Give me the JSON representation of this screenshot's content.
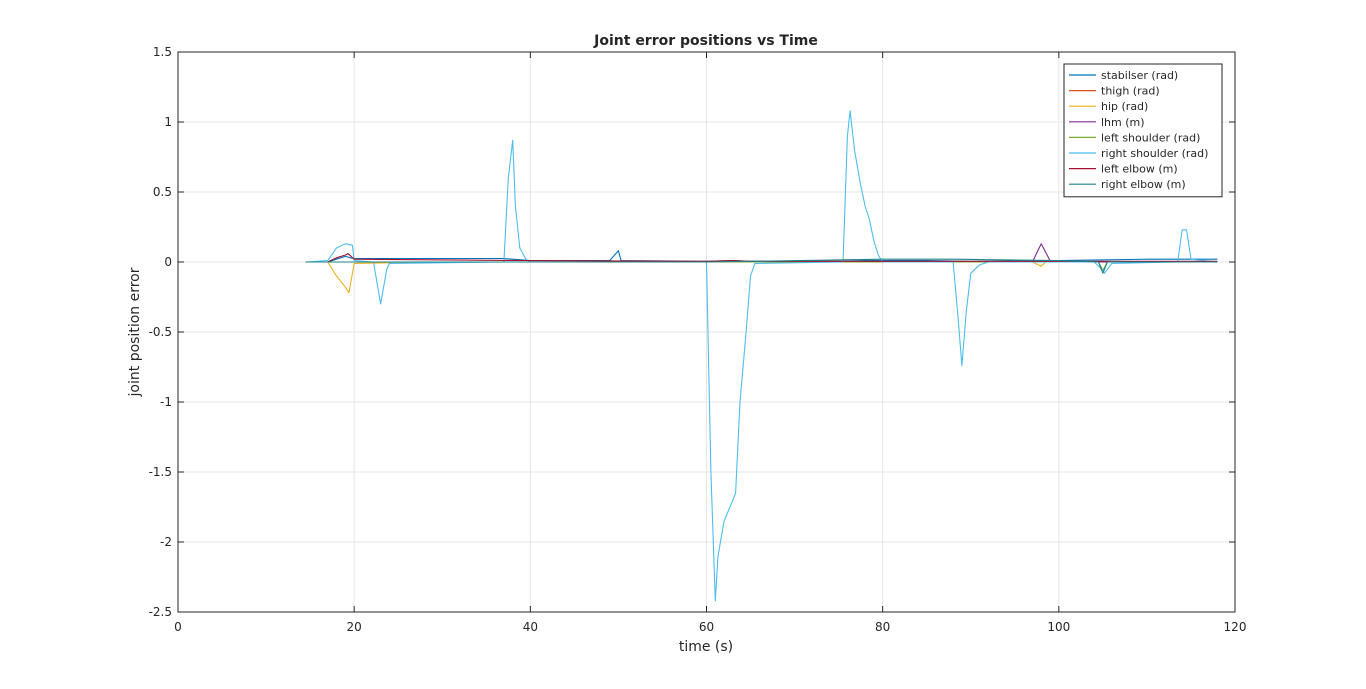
{
  "chart_data": {
    "type": "line",
    "title": "Joint error positions vs Time",
    "xlabel": "time (s)",
    "ylabel": "joint position error",
    "xlim": [
      0,
      120
    ],
    "ylim": [
      -2.5,
      1.5
    ],
    "xticks": [
      0,
      20,
      40,
      60,
      80,
      100,
      120
    ],
    "xtick_labels": [
      "0",
      "20",
      "40",
      "60",
      "80",
      "100",
      "120"
    ],
    "yticks": [
      -2.5,
      -2,
      -1.5,
      -1,
      -0.5,
      0,
      0.5,
      1,
      1.5
    ],
    "ytick_labels": [
      "-2.5",
      "-2",
      "-1.5",
      "-1",
      "-0.5",
      "0",
      "0.5",
      "1",
      "1.5"
    ],
    "grid": true,
    "legend_position": "top-right",
    "series": [
      {
        "name": "stabilser (rad)",
        "color": "#0072bd",
        "x": [
          14.5,
          17,
          18,
          19,
          19.6,
          20,
          37,
          38,
          40,
          49,
          50,
          50.3,
          60,
          63,
          65,
          75,
          78,
          85,
          90,
          100,
          110,
          115,
          118
        ],
        "y": [
          0,
          0,
          0.02,
          0.04,
          0.03,
          0.025,
          0.025,
          0.02,
          0.01,
          0.01,
          0.08,
          0.01,
          0.005,
          0.01,
          0.005,
          0.005,
          0.01,
          0.01,
          0.005,
          0.01,
          0.02,
          0.02,
          0.02
        ]
      },
      {
        "name": "thigh (rad)",
        "color": "#d95319",
        "x": [
          14.5,
          20,
          40,
          60,
          80,
          100,
          118
        ],
        "y": [
          0,
          0,
          0,
          0,
          0,
          0,
          0
        ]
      },
      {
        "name": "hip (rad)",
        "color": "#edb120",
        "x": [
          14.5,
          17,
          18,
          19,
          19.4,
          20,
          30,
          40,
          60,
          80,
          97,
          98,
          98.5,
          100,
          118
        ],
        "y": [
          0,
          0,
          -0.1,
          -0.18,
          -0.22,
          -0.01,
          0,
          0,
          0,
          0,
          0,
          -0.03,
          0,
          0,
          0
        ]
      },
      {
        "name": "lhm (m)",
        "color": "#7e2f8e",
        "x": [
          14.5,
          40,
          60,
          90,
          97,
          98,
          99,
          100,
          118
        ],
        "y": [
          0,
          0,
          0,
          0,
          0,
          0.13,
          0.01,
          0,
          0
        ]
      },
      {
        "name": "left shoulder (rad)",
        "color": "#77ac30",
        "x": [
          14.5,
          40,
          60,
          80,
          100,
          104.5,
          105,
          105.5,
          110,
          118
        ],
        "y": [
          0,
          0,
          0,
          0,
          0,
          0,
          -0.06,
          0,
          0,
          0
        ]
      },
      {
        "name": "right shoulder (rad)",
        "color": "#4dbeee",
        "x": [
          14.5,
          17,
          18,
          19,
          19.8,
          20,
          22.2,
          23,
          23.7,
          24,
          37,
          37.5,
          38,
          38.3,
          38.8,
          39.5,
          40,
          60,
          60.5,
          61,
          61.3,
          62,
          63,
          63.3,
          63.8,
          64.5,
          65,
          65.5,
          75.5,
          76,
          76.3,
          76.8,
          77.5,
          78,
          78.5,
          79,
          79.5,
          80,
          88,
          88.5,
          89,
          89.5,
          90,
          91,
          92,
          100,
          104,
          105,
          105.2,
          106,
          113.5,
          114,
          114.5,
          115,
          118
        ],
        "y": [
          0,
          0.01,
          0.1,
          0.13,
          0.12,
          0.01,
          0,
          -0.3,
          -0.05,
          -0.01,
          0,
          0.6,
          0.87,
          0.4,
          0.1,
          0.02,
          0,
          0,
          -1.5,
          -2.42,
          -2.1,
          -1.85,
          -1.7,
          -1.65,
          -1,
          -0.5,
          -0.1,
          -0.01,
          0,
          0.9,
          1.08,
          0.8,
          0.55,
          0.4,
          0.3,
          0.15,
          0.05,
          0,
          0,
          -0.35,
          -0.74,
          -0.35,
          -0.08,
          -0.02,
          0,
          0,
          0,
          -0.06,
          -0.08,
          -0.01,
          0,
          0.23,
          0.23,
          0.02,
          0
        ]
      },
      {
        "name": "left elbow (m)",
        "color": "#a2142f",
        "x": [
          14.5,
          17,
          18,
          19,
          19.3,
          20,
          40,
          60,
          63,
          65,
          80,
          100,
          118
        ],
        "y": [
          0,
          0,
          0.03,
          0.05,
          0.06,
          0.02,
          0.01,
          0.005,
          0.01,
          0.005,
          0.005,
          0.005,
          0.005
        ]
      },
      {
        "name": "right elbow (m)",
        "color": "#20838a",
        "x": [
          14.5,
          40,
          60,
          80,
          88,
          100,
          104.5,
          105,
          105.5,
          110,
          118
        ],
        "y": [
          0,
          0,
          0,
          0.02,
          0.02,
          0.01,
          0,
          -0.08,
          0,
          0,
          0
        ]
      }
    ]
  }
}
